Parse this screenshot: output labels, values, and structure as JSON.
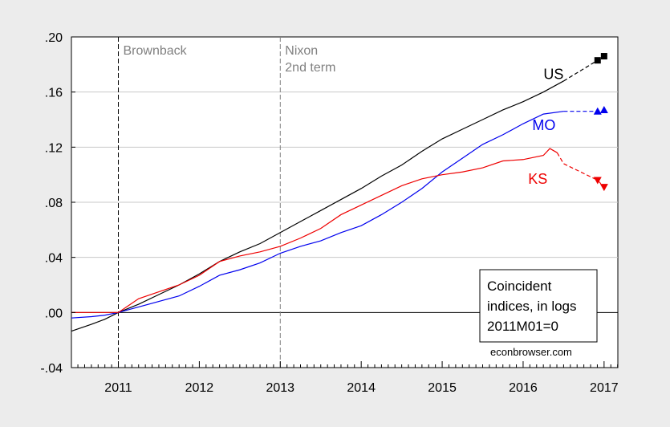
{
  "chart_data": {
    "type": "line",
    "title": "",
    "xlabel": "",
    "ylabel": "",
    "xlim": [
      2010.42,
      2017.17
    ],
    "ylim": [
      -0.04,
      0.2
    ],
    "x_ticks": [
      "2011",
      "2012",
      "2013",
      "2014",
      "2015",
      "2016",
      "2017"
    ],
    "y_ticks": [
      ".20",
      ".16",
      ".12",
      ".08",
      ".04",
      ".00",
      "-.04"
    ],
    "y_tick_values": [
      0.2,
      0.16,
      0.12,
      0.08,
      0.04,
      0.0,
      -0.04
    ],
    "grid": true,
    "vlines": [
      {
        "x": 2011.0,
        "label": "Brownback"
      },
      {
        "x": 2013.0,
        "label_lines": [
          "Nixon",
          "2nd term"
        ]
      }
    ],
    "annotation_box": {
      "lines": [
        "Coincident",
        "indices, in logs",
        "2011M01=0"
      ],
      "source": "econbrowser.com"
    },
    "series": [
      {
        "name": "US",
        "color": "#000000",
        "marker": "square",
        "points": [
          [
            2010.42,
            -0.0135
          ],
          [
            2010.67,
            -0.0085
          ],
          [
            2010.83,
            -0.005
          ],
          [
            2011.0,
            0.0
          ],
          [
            2011.25,
            0.006
          ],
          [
            2011.5,
            0.013
          ],
          [
            2011.75,
            0.02
          ],
          [
            2012.0,
            0.028
          ],
          [
            2012.25,
            0.037
          ],
          [
            2012.5,
            0.044
          ],
          [
            2012.75,
            0.05
          ],
          [
            2013.0,
            0.058
          ],
          [
            2013.25,
            0.066
          ],
          [
            2013.5,
            0.074
          ],
          [
            2013.75,
            0.082
          ],
          [
            2014.0,
            0.09
          ],
          [
            2014.25,
            0.099
          ],
          [
            2014.5,
            0.107
          ],
          [
            2014.75,
            0.117
          ],
          [
            2015.0,
            0.126
          ],
          [
            2015.25,
            0.133
          ],
          [
            2015.5,
            0.14
          ],
          [
            2015.75,
            0.147
          ],
          [
            2016.0,
            0.153
          ],
          [
            2016.25,
            0.16
          ],
          [
            2016.5,
            0.168
          ]
        ],
        "forecast": [
          [
            2016.5,
            0.168
          ],
          [
            2016.92,
            0.183
          ],
          [
            2017.0,
            0.186
          ]
        ]
      },
      {
        "name": "MO",
        "color": "#0000ee",
        "marker": "triangle-up",
        "points": [
          [
            2010.42,
            -0.004
          ],
          [
            2010.67,
            -0.003
          ],
          [
            2010.83,
            -0.002
          ],
          [
            2011.0,
            0.0
          ],
          [
            2011.25,
            0.004
          ],
          [
            2011.5,
            0.008
          ],
          [
            2011.75,
            0.012
          ],
          [
            2012.0,
            0.019
          ],
          [
            2012.25,
            0.027
          ],
          [
            2012.5,
            0.031
          ],
          [
            2012.75,
            0.036
          ],
          [
            2013.0,
            0.043
          ],
          [
            2013.25,
            0.048
          ],
          [
            2013.5,
            0.052
          ],
          [
            2013.75,
            0.058
          ],
          [
            2014.0,
            0.063
          ],
          [
            2014.25,
            0.071
          ],
          [
            2014.5,
            0.08
          ],
          [
            2014.75,
            0.09
          ],
          [
            2015.0,
            0.102
          ],
          [
            2015.25,
            0.112
          ],
          [
            2015.5,
            0.122
          ],
          [
            2015.75,
            0.129
          ],
          [
            2016.0,
            0.137
          ],
          [
            2016.25,
            0.144
          ],
          [
            2016.5,
            0.146
          ]
        ],
        "forecast": [
          [
            2016.5,
            0.146
          ],
          [
            2016.92,
            0.146
          ],
          [
            2017.0,
            0.147
          ]
        ]
      },
      {
        "name": "KS",
        "color": "#ee0000",
        "marker": "triangle-down",
        "points": [
          [
            2010.42,
            0.0
          ],
          [
            2010.67,
            0.0
          ],
          [
            2010.83,
            0.0
          ],
          [
            2011.0,
            0.0
          ],
          [
            2011.25,
            0.01
          ],
          [
            2011.5,
            0.015
          ],
          [
            2011.75,
            0.02
          ],
          [
            2012.0,
            0.027
          ],
          [
            2012.25,
            0.037
          ],
          [
            2012.5,
            0.041
          ],
          [
            2012.75,
            0.044
          ],
          [
            2013.0,
            0.048
          ],
          [
            2013.25,
            0.054
          ],
          [
            2013.5,
            0.061
          ],
          [
            2013.75,
            0.071
          ],
          [
            2014.0,
            0.078
          ],
          [
            2014.25,
            0.085
          ],
          [
            2014.5,
            0.092
          ],
          [
            2014.75,
            0.097
          ],
          [
            2015.0,
            0.1
          ],
          [
            2015.25,
            0.102
          ],
          [
            2015.5,
            0.105
          ],
          [
            2015.75,
            0.11
          ],
          [
            2016.0,
            0.111
          ],
          [
            2016.25,
            0.114
          ],
          [
            2016.33,
            0.119
          ],
          [
            2016.42,
            0.116
          ]
        ],
        "forecast": [
          [
            2016.42,
            0.116
          ],
          [
            2016.5,
            0.108
          ],
          [
            2016.92,
            0.096
          ],
          [
            2017.0,
            0.091
          ]
        ]
      }
    ]
  }
}
